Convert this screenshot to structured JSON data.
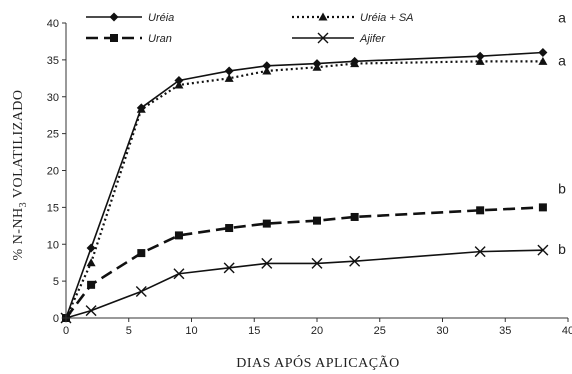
{
  "chart_data": {
    "type": "line",
    "xlabel": "DIAS APÓS APLICAÇÃO",
    "ylabel_parts": {
      "before": "% N-NH",
      "sub": "3",
      "after": " VOLATILIZADO"
    },
    "xlim": [
      0,
      40
    ],
    "ylim": [
      0,
      40
    ],
    "xticks": [
      0,
      5,
      10,
      15,
      20,
      25,
      30,
      35,
      40
    ],
    "yticks": [
      0,
      5,
      10,
      15,
      20,
      25,
      30,
      35,
      40
    ],
    "grid": false,
    "legend_placement": "top",
    "series": [
      {
        "name": "Uréia",
        "line": "solid",
        "marker": "diamond",
        "x": [
          0,
          2,
          6,
          9,
          13,
          16,
          20,
          23,
          33,
          38
        ],
        "y": [
          0,
          9.5,
          28.5,
          32.2,
          33.5,
          34.2,
          34.5,
          34.8,
          35.5,
          36.0
        ],
        "end_label": "a"
      },
      {
        "name": "Uréia + SA",
        "line": "dotted",
        "marker": "triangle",
        "x": [
          0,
          2,
          6,
          9,
          13,
          16,
          20,
          23,
          33,
          38
        ],
        "y": [
          0,
          7.5,
          28.3,
          31.6,
          32.5,
          33.5,
          34.0,
          34.5,
          34.8,
          34.8
        ],
        "end_label": "a"
      },
      {
        "name": "Uran",
        "line": "dashed",
        "marker": "square",
        "x": [
          0,
          2,
          6,
          9,
          13,
          16,
          20,
          23,
          33,
          38
        ],
        "y": [
          0,
          4.5,
          8.8,
          11.2,
          12.2,
          12.8,
          13.2,
          13.7,
          14.6,
          15.0
        ],
        "end_label": "b"
      },
      {
        "name": "Ajifer",
        "line": "solid",
        "marker": "x",
        "x": [
          0,
          2,
          6,
          9,
          13,
          16,
          20,
          23,
          33,
          38
        ],
        "y": [
          0,
          1.0,
          3.6,
          6.0,
          6.8,
          7.4,
          7.4,
          7.7,
          9.0,
          9.2
        ],
        "end_label": "b"
      }
    ]
  }
}
